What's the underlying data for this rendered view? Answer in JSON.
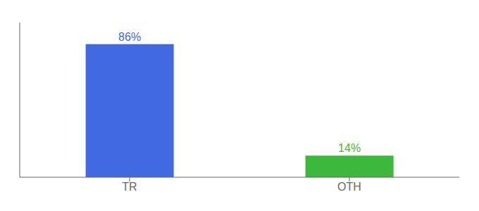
{
  "chart_data": {
    "type": "bar",
    "categories": [
      "TR",
      "OTH"
    ],
    "values": [
      86,
      14
    ],
    "value_labels": [
      "86%",
      "14%"
    ],
    "data_labels": true,
    "colors": [
      "#4169e1",
      "#3cb83c"
    ],
    "ylim": [
      0,
      100
    ],
    "grid": false,
    "tick_labels": "x"
  }
}
